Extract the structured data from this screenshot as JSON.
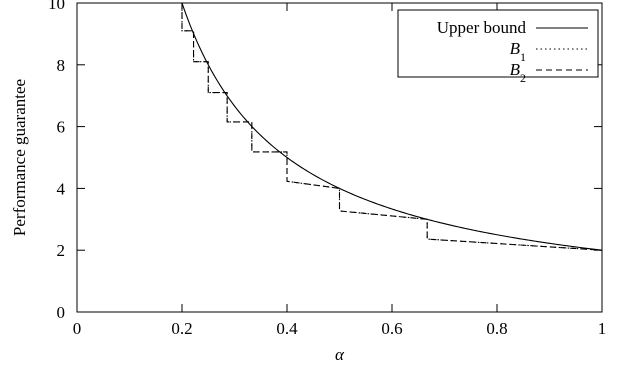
{
  "chart_data": {
    "type": "line",
    "xlabel": "α",
    "ylabel": "Performance guarantee",
    "xlim": [
      0,
      1
    ],
    "ylim": [
      0,
      10
    ],
    "x_ticks": [
      "0",
      "0.2",
      "0.4",
      "0.6",
      "0.8",
      "1"
    ],
    "y_ticks": [
      "0",
      "2",
      "4",
      "6",
      "8",
      "10"
    ],
    "legend_position": "top-right",
    "series": [
      {
        "name": "Upper bound",
        "label_base": "Upper bound",
        "label_sub": "",
        "style": "solid",
        "formula": "2/α",
        "x": [
          0.2,
          0.25,
          0.3,
          0.35,
          0.4,
          0.5,
          0.6,
          0.7,
          0.8,
          0.9,
          1.0
        ],
        "y": [
          10,
          8,
          6.67,
          5.71,
          5,
          4,
          3.33,
          2.86,
          2.5,
          2.22,
          2
        ]
      },
      {
        "name": "B1",
        "label_base": "B",
        "label_sub": "1",
        "style": "dotted",
        "x": [
          0.2,
          0.2,
          0.222,
          0.222,
          0.25,
          0.25,
          0.286,
          0.286,
          0.333,
          0.333,
          0.4,
          0.4,
          0.5,
          0.5,
          0.667,
          0.667,
          1.0
        ],
        "y": [
          10,
          9.1,
          9.1,
          8.1,
          8.1,
          7.1,
          7.1,
          6.15,
          6.15,
          5.18,
          5.18,
          4.23,
          4.0,
          3.27,
          3.0,
          2.36,
          2.0
        ]
      },
      {
        "name": "B2",
        "label_base": "B",
        "label_sub": "2",
        "style": "dashed",
        "x": [
          0.2,
          0.2,
          0.222,
          0.222,
          0.25,
          0.25,
          0.286,
          0.286,
          0.333,
          0.333,
          0.4,
          0.4,
          0.5,
          0.5,
          0.667,
          0.667,
          1.0
        ],
        "y": [
          10,
          9.1,
          9.1,
          8.1,
          8.1,
          7.1,
          7.1,
          6.15,
          6.15,
          5.18,
          5.18,
          4.23,
          4.0,
          3.27,
          3.0,
          2.36,
          2.0
        ]
      }
    ]
  }
}
